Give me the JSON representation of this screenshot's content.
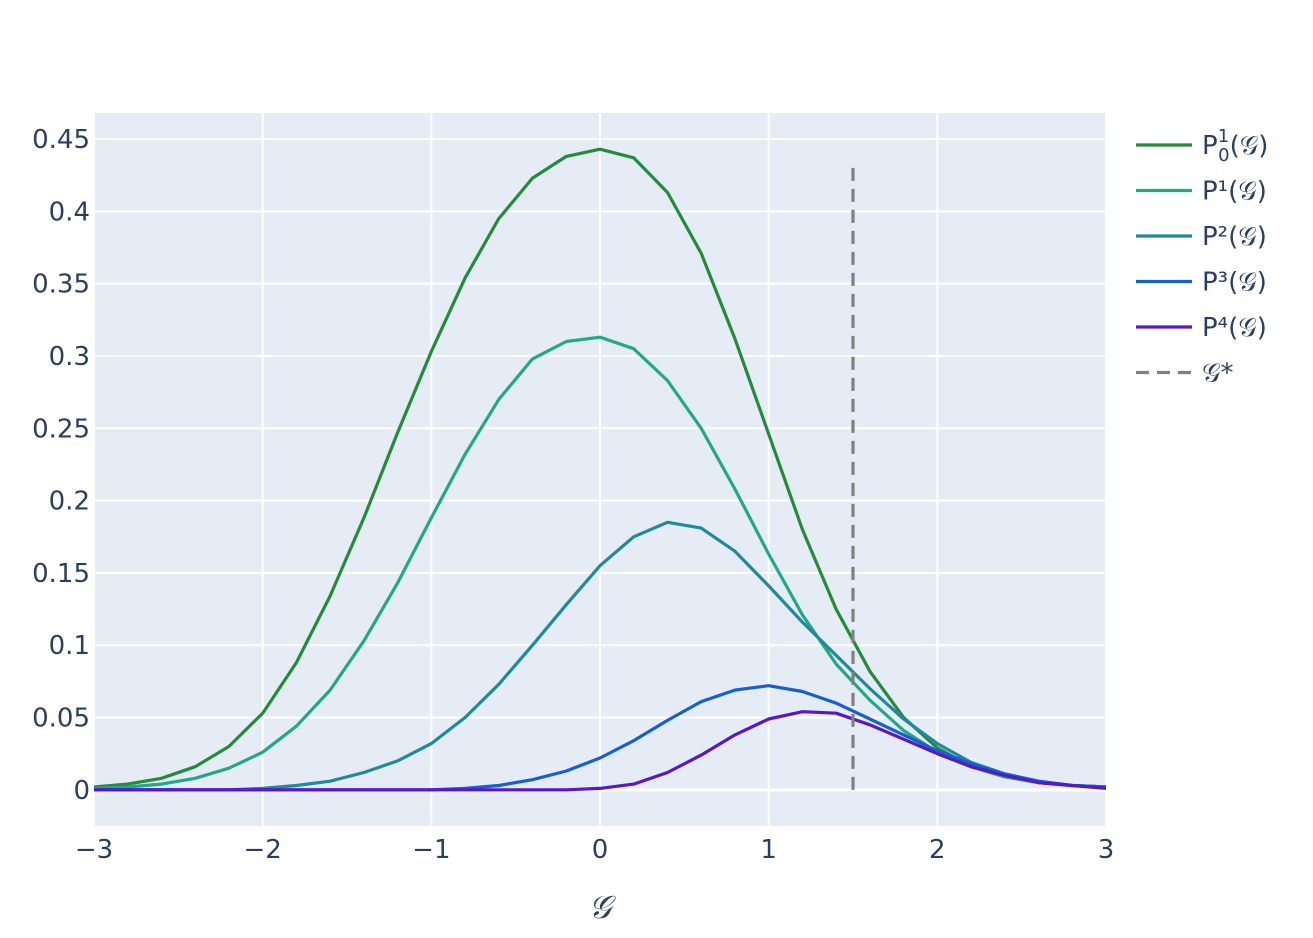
{
  "chart_data": {
    "type": "line",
    "xlabel": "𝒢",
    "x_ticks": [
      "−3",
      "−2",
      "−1",
      "0",
      "1",
      "2",
      "3"
    ],
    "y_ticks": [
      "0",
      "0.05",
      "0.1",
      "0.15",
      "0.2",
      "0.25",
      "0.3",
      "0.35",
      "0.4",
      "0.45"
    ],
    "xlim": [
      -3,
      3
    ],
    "ylim": [
      -0.025,
      0.468
    ],
    "grid": true,
    "legend_position": "right",
    "background": "#e5ecf6",
    "series": [
      {
        "name": "P",
        "name_sup": "1",
        "name_sub": "0",
        "name_tail": "(𝒢)",
        "color": "#238b3a",
        "dash": "solid",
        "x": [
          -3.0,
          -2.8,
          -2.6,
          -2.4,
          -2.2,
          -2.0,
          -1.8,
          -1.6,
          -1.4,
          -1.2,
          -1.0,
          -0.8,
          -0.6,
          -0.4,
          -0.2,
          0.0,
          0.2,
          0.4,
          0.6,
          0.8,
          1.0,
          1.2,
          1.4,
          1.6,
          1.8,
          2.0,
          2.2,
          2.4,
          2.6,
          2.8,
          3.0
        ],
        "values": [
          0.002,
          0.004,
          0.008,
          0.016,
          0.03,
          0.053,
          0.088,
          0.134,
          0.188,
          0.247,
          0.303,
          0.354,
          0.395,
          0.423,
          0.438,
          0.443,
          0.437,
          0.413,
          0.371,
          0.312,
          0.246,
          0.18,
          0.125,
          0.082,
          0.05,
          0.029,
          0.016,
          0.009,
          0.005,
          0.003,
          0.002
        ]
      },
      {
        "name": "P¹(𝒢)",
        "color": "#22a884",
        "dash": "solid",
        "x": [
          -3.0,
          -2.8,
          -2.6,
          -2.4,
          -2.2,
          -2.0,
          -1.8,
          -1.6,
          -1.4,
          -1.2,
          -1.0,
          -0.8,
          -0.6,
          -0.4,
          -0.2,
          0.0,
          0.2,
          0.4,
          0.6,
          0.8,
          1.0,
          1.2,
          1.4,
          1.6,
          1.8,
          2.0,
          2.2,
          2.4,
          2.6,
          2.8,
          3.0
        ],
        "values": [
          0.001,
          0.002,
          0.004,
          0.008,
          0.015,
          0.026,
          0.044,
          0.069,
          0.103,
          0.143,
          0.188,
          0.232,
          0.27,
          0.298,
          0.31,
          0.313,
          0.305,
          0.283,
          0.25,
          0.208,
          0.163,
          0.121,
          0.087,
          0.062,
          0.041,
          0.026,
          0.016,
          0.009,
          0.005,
          0.003,
          0.002
        ]
      },
      {
        "name": "P²(𝒢)",
        "color": "#1f8a9a",
        "dash": "solid",
        "x": [
          -3.0,
          -2.8,
          -2.6,
          -2.4,
          -2.2,
          -2.0,
          -1.8,
          -1.6,
          -1.4,
          -1.2,
          -1.0,
          -0.8,
          -0.6,
          -0.4,
          -0.2,
          0.0,
          0.2,
          0.4,
          0.6,
          0.8,
          1.0,
          1.2,
          1.4,
          1.6,
          1.8,
          2.0,
          2.2,
          2.4,
          2.6,
          2.8,
          3.0
        ],
        "values": [
          0.0,
          0.0,
          0.0,
          0.0,
          0.0,
          0.001,
          0.003,
          0.006,
          0.012,
          0.02,
          0.032,
          0.05,
          0.073,
          0.1,
          0.128,
          0.155,
          0.175,
          0.185,
          0.181,
          0.165,
          0.141,
          0.116,
          0.093,
          0.07,
          0.049,
          0.032,
          0.019,
          0.011,
          0.006,
          0.003,
          0.002
        ]
      },
      {
        "name": "P³(𝒢)",
        "color": "#1560cf",
        "dash": "solid",
        "x": [
          -3.0,
          -2.8,
          -2.6,
          -2.4,
          -2.2,
          -2.0,
          -1.8,
          -1.6,
          -1.4,
          -1.2,
          -1.0,
          -0.8,
          -0.6,
          -0.4,
          -0.2,
          0.0,
          0.2,
          0.4,
          0.6,
          0.8,
          1.0,
          1.2,
          1.4,
          1.6,
          1.8,
          2.0,
          2.2,
          2.4,
          2.6,
          2.8,
          3.0
        ],
        "values": [
          0.0,
          0.0,
          0.0,
          0.0,
          0.0,
          0.0,
          0.0,
          0.0,
          0.0,
          0.0,
          0.0,
          0.001,
          0.003,
          0.007,
          0.013,
          0.022,
          0.034,
          0.048,
          0.061,
          0.069,
          0.072,
          0.068,
          0.06,
          0.049,
          0.038,
          0.027,
          0.018,
          0.011,
          0.006,
          0.003,
          0.002
        ]
      },
      {
        "name": "P⁴(𝒢)",
        "color": "#5a17c6",
        "dash": "solid",
        "x": [
          -3.0,
          -2.8,
          -2.6,
          -2.4,
          -2.2,
          -2.0,
          -1.8,
          -1.6,
          -1.4,
          -1.2,
          -1.0,
          -0.8,
          -0.6,
          -0.4,
          -0.2,
          0.0,
          0.2,
          0.4,
          0.6,
          0.8,
          1.0,
          1.2,
          1.4,
          1.6,
          1.8,
          2.0,
          2.2,
          2.4,
          2.6,
          2.8,
          3.0
        ],
        "values": [
          0.0,
          0.0,
          0.0,
          0.0,
          0.0,
          0.0,
          0.0,
          0.0,
          0.0,
          0.0,
          0.0,
          0.0,
          0.0,
          0.0,
          0.0,
          0.001,
          0.004,
          0.012,
          0.024,
          0.038,
          0.049,
          0.054,
          0.053,
          0.045,
          0.035,
          0.025,
          0.016,
          0.01,
          0.005,
          0.003,
          0.001
        ]
      }
    ],
    "reference_line": {
      "name": "𝒢*",
      "color": "#808080",
      "dash": "dash",
      "x": 1.5,
      "y_range": [
        0.0,
        0.433
      ]
    }
  }
}
